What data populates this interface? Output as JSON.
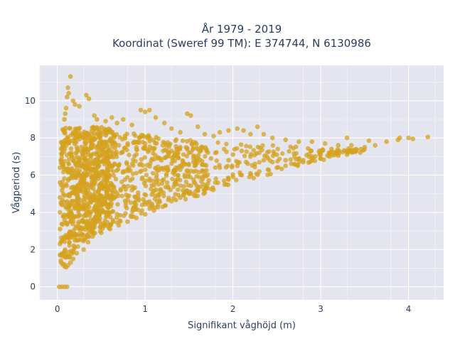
{
  "chart_data": {
    "type": "scatter",
    "title_line1": "År 1979 - 2019",
    "title_line2": "Koordinat (Sweref 99 TM): E 374744, N 6130986",
    "xlabel": "Signifikant våghöjd (m)",
    "ylabel": "Vågperiod (s)",
    "xlim": [
      -0.2,
      4.4
    ],
    "ylim": [
      -0.7,
      11.9
    ],
    "x_ticks": [
      0,
      1,
      2,
      3,
      4
    ],
    "y_ticks": [
      0,
      2,
      4,
      6,
      8,
      10
    ],
    "grid": true,
    "marker_color": "#d4a11e",
    "plot_bg": "#e5e5ef",
    "series": [
      {
        "points": [
          [
            0.02,
            0.0
          ],
          [
            0.05,
            0.0
          ],
          [
            0.08,
            0.0
          ],
          [
            0.11,
            0.0
          ],
          [
            0.04,
            1.4
          ],
          [
            0.06,
            1.2
          ],
          [
            0.08,
            1.1
          ],
          [
            0.1,
            1.05
          ],
          [
            0.12,
            1.15
          ],
          [
            0.15,
            1.3
          ],
          [
            0.18,
            1.5
          ],
          [
            0.22,
            1.8
          ],
          [
            0.03,
            1.7
          ],
          [
            0.03,
            2.3
          ],
          [
            0.03,
            3.1
          ],
          [
            0.03,
            4.0
          ],
          [
            0.03,
            4.8
          ],
          [
            0.03,
            5.6
          ],
          [
            0.03,
            6.4
          ],
          [
            0.04,
            6.8
          ],
          [
            0.06,
            7.6
          ],
          [
            0.07,
            8.4
          ],
          [
            0.08,
            9.0
          ],
          [
            0.09,
            9.3
          ],
          [
            0.1,
            9.6
          ],
          [
            0.11,
            10.2
          ],
          [
            0.12,
            10.7
          ],
          [
            0.15,
            11.3
          ],
          [
            0.13,
            10.4
          ],
          [
            0.18,
            10.0
          ],
          [
            0.2,
            9.8
          ],
          [
            0.25,
            9.7
          ],
          [
            0.33,
            10.3
          ],
          [
            0.36,
            10.1
          ],
          [
            0.42,
            9.2
          ],
          [
            0.45,
            9.0
          ],
          [
            0.55,
            8.9
          ],
          [
            0.62,
            9.1
          ],
          [
            0.68,
            8.8
          ],
          [
            0.75,
            9.0
          ],
          [
            0.85,
            8.7
          ],
          [
            0.95,
            9.5
          ],
          [
            1.0,
            9.4
          ],
          [
            1.05,
            9.5
          ],
          [
            1.12,
            9.1
          ],
          [
            1.22,
            8.8
          ],
          [
            1.3,
            8.5
          ],
          [
            1.4,
            8.3
          ],
          [
            1.48,
            9.3
          ],
          [
            1.52,
            9.2
          ],
          [
            1.6,
            8.6
          ],
          [
            1.68,
            8.2
          ],
          [
            1.78,
            8.1
          ],
          [
            1.85,
            8.3
          ],
          [
            1.95,
            8.4
          ],
          [
            2.05,
            8.5
          ],
          [
            2.12,
            8.4
          ],
          [
            2.2,
            8.2
          ],
          [
            2.28,
            8.6
          ],
          [
            2.35,
            8.2
          ],
          [
            2.45,
            8.0
          ],
          [
            2.6,
            7.9
          ],
          [
            2.75,
            7.8
          ],
          [
            2.9,
            7.8
          ],
          [
            3.05,
            7.7
          ],
          [
            3.2,
            7.6
          ],
          [
            3.35,
            7.6
          ],
          [
            3.5,
            7.5
          ],
          [
            3.62,
            7.6
          ],
          [
            3.75,
            7.8
          ],
          [
            3.88,
            7.9
          ],
          [
            4.0,
            8.0
          ],
          [
            4.05,
            7.95
          ],
          [
            4.22,
            8.05
          ],
          [
            3.3,
            8.0
          ],
          [
            3.55,
            7.85
          ],
          [
            3.9,
            8.0
          ],
          [
            0.3,
            8.2
          ],
          [
            0.4,
            8.0
          ],
          [
            0.5,
            7.8
          ],
          [
            0.6,
            7.9
          ],
          [
            0.7,
            7.6
          ],
          [
            0.8,
            7.7
          ],
          [
            0.9,
            7.5
          ],
          [
            1.0,
            7.7
          ],
          [
            1.1,
            7.4
          ],
          [
            1.2,
            7.6
          ],
          [
            1.3,
            7.3
          ],
          [
            1.4,
            7.5
          ],
          [
            1.5,
            7.2
          ],
          [
            1.6,
            7.4
          ],
          [
            1.7,
            7.3
          ],
          [
            1.8,
            7.2
          ],
          [
            1.9,
            7.4
          ],
          [
            2.0,
            7.1
          ],
          [
            2.1,
            7.3
          ],
          [
            2.2,
            7.0
          ],
          [
            2.3,
            7.2
          ],
          [
            2.4,
            6.9
          ],
          [
            2.5,
            7.1
          ],
          [
            2.6,
            6.8
          ],
          [
            2.7,
            7.0
          ],
          [
            2.8,
            6.8
          ],
          [
            2.9,
            7.0
          ],
          [
            3.0,
            7.1
          ],
          [
            3.1,
            7.2
          ],
          [
            3.2,
            7.3
          ],
          [
            3.3,
            7.3
          ],
          [
            3.4,
            7.4
          ],
          [
            0.3,
            2.0
          ],
          [
            0.35,
            2.4
          ],
          [
            0.4,
            2.7
          ],
          [
            0.5,
            2.9
          ],
          [
            0.6,
            3.1
          ],
          [
            0.7,
            3.3
          ],
          [
            0.8,
            3.5
          ],
          [
            0.9,
            3.7
          ],
          [
            1.0,
            3.9
          ],
          [
            1.1,
            4.1
          ],
          [
            1.2,
            4.3
          ],
          [
            1.3,
            4.6
          ],
          [
            1.4,
            4.8
          ],
          [
            1.5,
            5.0
          ],
          [
            1.6,
            5.2
          ],
          [
            1.7,
            5.4
          ],
          [
            1.8,
            5.6
          ],
          [
            1.9,
            5.7
          ],
          [
            2.0,
            5.9
          ],
          [
            2.1,
            6.0
          ],
          [
            2.2,
            6.1
          ],
          [
            2.3,
            6.2
          ],
          [
            2.4,
            6.3
          ],
          [
            2.5,
            6.4
          ],
          [
            2.6,
            6.5
          ],
          [
            2.7,
            6.6
          ],
          [
            2.8,
            6.7
          ],
          [
            2.9,
            6.8
          ],
          [
            3.0,
            6.9
          ],
          [
            3.1,
            7.0
          ],
          [
            3.2,
            7.05
          ],
          [
            3.3,
            7.1
          ],
          [
            0.2,
            5.0
          ],
          [
            0.25,
            6.5
          ],
          [
            0.35,
            4.5
          ],
          [
            0.45,
            6.8
          ],
          [
            0.55,
            5.5
          ],
          [
            0.65,
            4.8
          ],
          [
            0.75,
            6.2
          ],
          [
            0.85,
            5.2
          ],
          [
            0.95,
            6.6
          ],
          [
            1.05,
            5.8
          ],
          [
            1.15,
            6.9
          ],
          [
            1.25,
            5.6
          ],
          [
            1.35,
            6.4
          ],
          [
            1.45,
            6.0
          ],
          [
            1.55,
            6.7
          ],
          [
            1.65,
            6.2
          ],
          [
            1.75,
            6.9
          ],
          [
            1.85,
            6.4
          ],
          [
            1.95,
            6.8
          ],
          [
            2.05,
            6.5
          ],
          [
            2.15,
            6.7
          ],
          [
            2.25,
            6.6
          ],
          [
            2.35,
            6.8
          ],
          [
            2.45,
            6.7
          ],
          [
            0.15,
            3.5
          ],
          [
            0.2,
            2.5
          ],
          [
            0.12,
            4.5
          ],
          [
            0.1,
            5.5
          ],
          [
            0.14,
            6.2
          ],
          [
            0.16,
            7.2
          ],
          [
            0.18,
            8.3
          ],
          [
            0.22,
            7.5
          ],
          [
            0.28,
            4.2
          ],
          [
            0.38,
            3.6
          ],
          [
            0.48,
            4.0
          ],
          [
            0.58,
            4.4
          ],
          [
            0.68,
            3.9
          ],
          [
            0.78,
            4.5
          ],
          [
            0.88,
            4.3
          ],
          [
            0.98,
            4.7
          ]
        ]
      }
    ]
  }
}
